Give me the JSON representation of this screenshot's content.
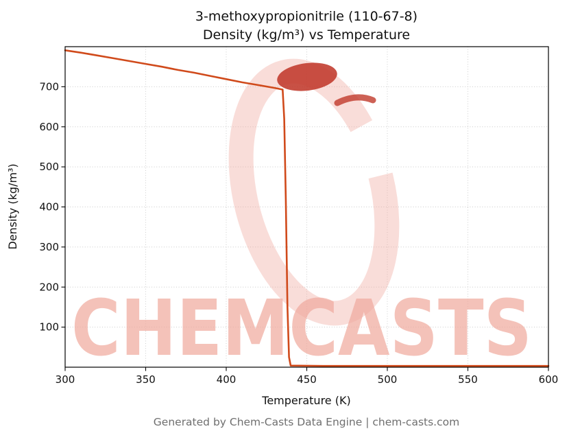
{
  "chart_data": {
    "type": "line",
    "title_line1": "3-methoxypropionitrile (110-67-8)",
    "title_line2": "Density (kg/m³) vs Temperature",
    "xlabel": "Temperature (K)",
    "ylabel": "Density (kg/m³)",
    "xlim": [
      300,
      600
    ],
    "ylim": [
      0,
      800
    ],
    "xticks": [
      300,
      350,
      400,
      450,
      500,
      550,
      600
    ],
    "yticks": [
      100,
      200,
      300,
      400,
      500,
      600,
      700
    ],
    "grid": true,
    "legend": "none",
    "line_color": "#d04a1b",
    "series": [
      {
        "name": "Density",
        "points": [
          [
            300,
            791
          ],
          [
            310,
            785
          ],
          [
            320,
            778
          ],
          [
            330,
            771
          ],
          [
            340,
            764
          ],
          [
            350,
            757
          ],
          [
            360,
            750
          ],
          [
            370,
            742
          ],
          [
            380,
            735
          ],
          [
            390,
            727
          ],
          [
            400,
            719
          ],
          [
            410,
            711
          ],
          [
            420,
            704
          ],
          [
            430,
            697
          ],
          [
            435,
            693
          ],
          [
            436,
            620
          ],
          [
            437,
            420
          ],
          [
            438,
            150
          ],
          [
            439,
            25
          ],
          [
            440,
            4
          ],
          [
            460,
            3
          ],
          [
            480,
            3
          ],
          [
            500,
            3
          ],
          [
            520,
            3
          ],
          [
            540,
            3
          ],
          [
            560,
            3
          ],
          [
            580,
            3
          ],
          [
            600,
            3
          ]
        ]
      }
    ]
  },
  "watermark": {
    "text": "CHEMCASTS",
    "text_color": "#f0ab9f",
    "ring_color": "#f0ab9f",
    "blob_color": "#c0392b"
  },
  "footer": {
    "text": "Generated by Chem-Casts Data Engine | chem-casts.com"
  }
}
